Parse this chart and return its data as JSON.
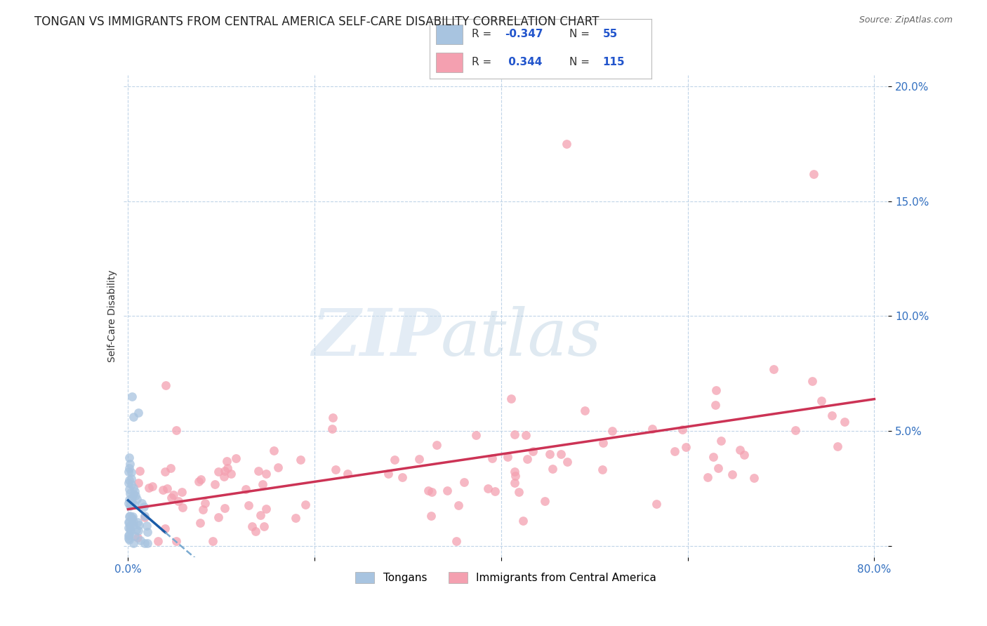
{
  "title": "TONGAN VS IMMIGRANTS FROM CENTRAL AMERICA SELF-CARE DISABILITY CORRELATION CHART",
  "source": "Source: ZipAtlas.com",
  "ylabel": "Self-Care Disability",
  "color_tongan_fill": "#a8c4e0",
  "color_central_fill": "#f4a0b0",
  "color_line_tongan_solid": "#1a5ca8",
  "color_line_tongan_dash": "#7aaad0",
  "color_line_central": "#cc3355",
  "background_color": "#ffffff",
  "grid_color": "#c0d4e8",
  "title_fontsize": 12,
  "tick_fontsize": 11,
  "tick_color": "#3370c0",
  "ylabel_fontsize": 10,
  "legend_r1_val": "-0.347",
  "legend_n1_val": "55",
  "legend_r2_val": "0.344",
  "legend_n2_val": "115"
}
